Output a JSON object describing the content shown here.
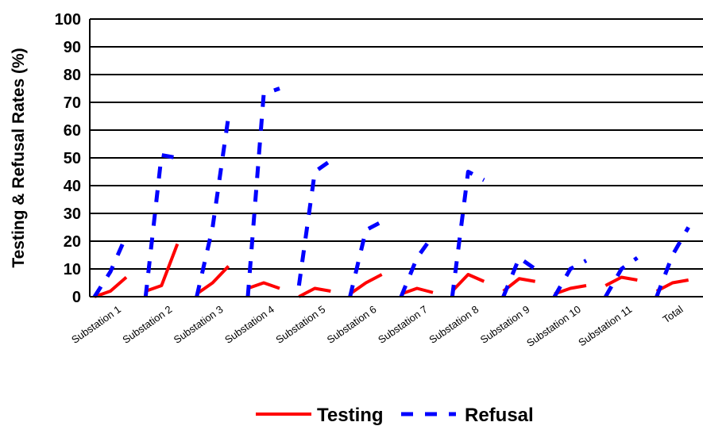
{
  "chart_data": {
    "type": "line",
    "ylabel": "Testing & Refusal Rates (%)",
    "xlabel": "",
    "ylim": [
      0,
      100
    ],
    "yticks": [
      "0",
      "10",
      "20",
      "30",
      "40",
      "50",
      "60",
      "70",
      "80",
      "90",
      "100"
    ],
    "categories": [
      "Substation 1",
      "Substation 2",
      "Substation 3",
      "Substation 4",
      "Substation 5",
      "Substation 6",
      "Substation 7",
      "Substation 8",
      "Substation 9",
      "Substation 10",
      "Substation 11",
      "Total"
    ],
    "grid": true,
    "legend_position": "bottom",
    "series": [
      {
        "name": "Testing",
        "color": "#ff0000",
        "style": "solid",
        "segments": [
          [
            0,
            2,
            7
          ],
          [
            2,
            4,
            19
          ],
          [
            1,
            5,
            11
          ],
          [
            3,
            5,
            3
          ],
          [
            0,
            3,
            2
          ],
          [
            1,
            5,
            8
          ],
          [
            1,
            3,
            1.5
          ],
          [
            2,
            8,
            5.5
          ],
          [
            2,
            6.5,
            5.5
          ],
          [
            1,
            3,
            4
          ],
          [
            4,
            7,
            6
          ],
          [
            2,
            5,
            6
          ]
        ]
      },
      {
        "name": "Refusal",
        "color": "#0000ff",
        "style": "dashed",
        "segments": [
          [
            0,
            9,
            22
          ],
          [
            0,
            51,
            50
          ],
          [
            0,
            25,
            65
          ],
          [
            0,
            73,
            75
          ],
          [
            4,
            45,
            49
          ],
          [
            0,
            24,
            27
          ],
          [
            0,
            14,
            22
          ],
          [
            0,
            45,
            42
          ],
          [
            0,
            14,
            10
          ],
          [
            0,
            10,
            13
          ],
          [
            0,
            10,
            14
          ],
          [
            0,
            15,
            25
          ]
        ]
      }
    ]
  }
}
